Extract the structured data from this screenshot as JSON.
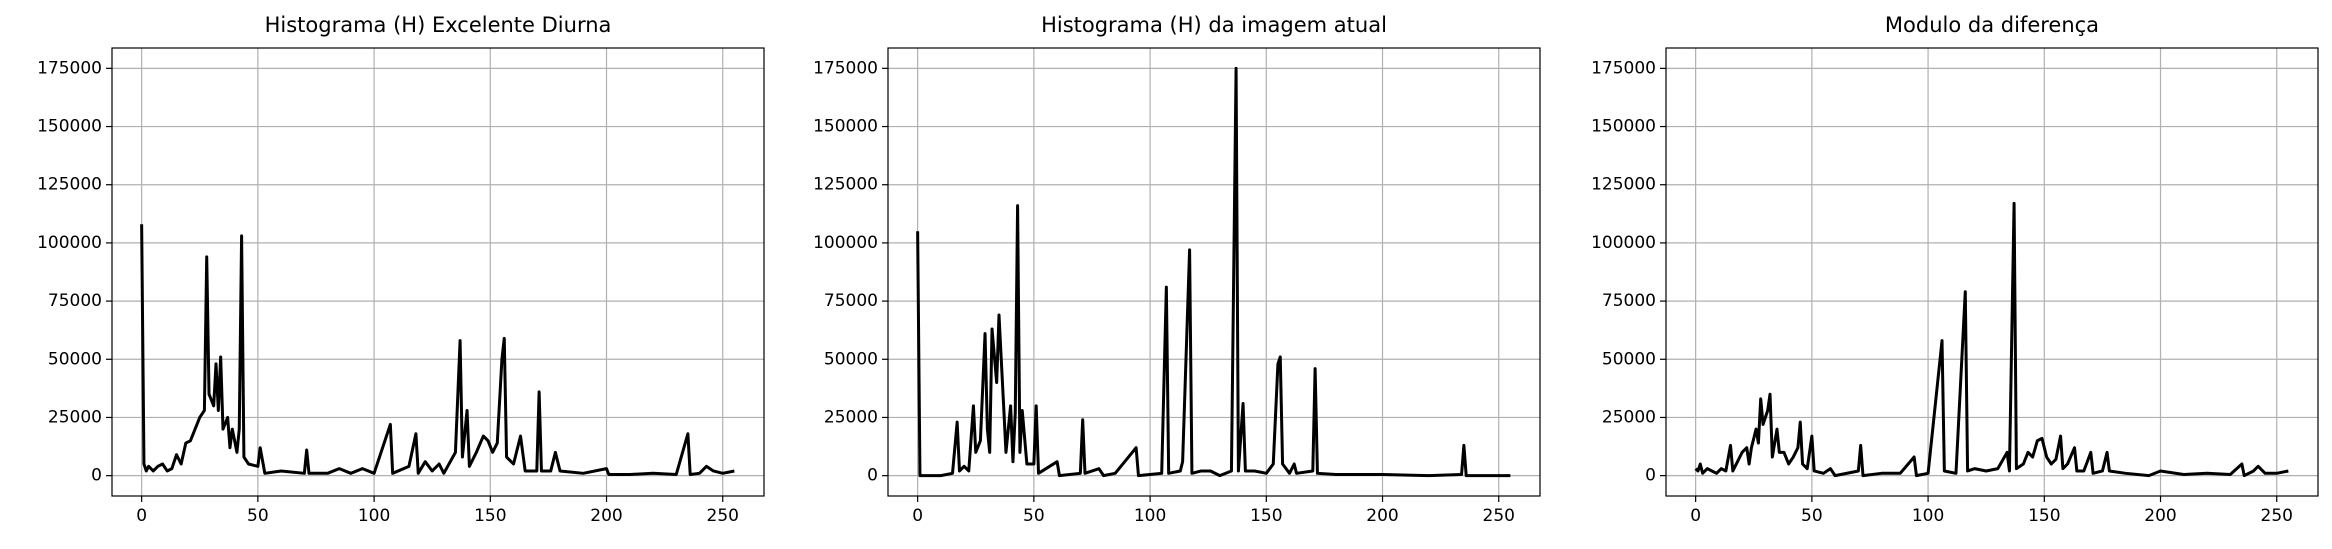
{
  "chart_data": [
    {
      "type": "line",
      "title": "Histograma (H) Excelente Diurna",
      "x": [
        0,
        1,
        2,
        3,
        5,
        7,
        9,
        11,
        13,
        15,
        17,
        19,
        21,
        23,
        25,
        27,
        28,
        29,
        31,
        32,
        33,
        34,
        35,
        37,
        38,
        39,
        41,
        42,
        43,
        44,
        46,
        50,
        51,
        53,
        60,
        70,
        71,
        72,
        80,
        85,
        90,
        95,
        100,
        107,
        108,
        115,
        118,
        119,
        122,
        125,
        128,
        130,
        135,
        137,
        138,
        140,
        141,
        144,
        147,
        149,
        151,
        153,
        155,
        156,
        157,
        160,
        163,
        165,
        170,
        171,
        172,
        176,
        178,
        180,
        190,
        200,
        201,
        210,
        220,
        230,
        235,
        236,
        240,
        243,
        246,
        250,
        255
      ],
      "series": [
        {
          "color": "#000000",
          "values": [
            108000,
            5000,
            2000,
            4000,
            2000,
            4000,
            5000,
            2000,
            3000,
            9000,
            5000,
            14000,
            15000,
            20000,
            25000,
            28000,
            94000,
            35000,
            30000,
            48000,
            28000,
            51000,
            20000,
            25000,
            12000,
            20000,
            10000,
            20000,
            103000,
            8000,
            5000,
            4000,
            12000,
            1000,
            2000,
            1000,
            11000,
            1000,
            1000,
            3000,
            1000,
            3000,
            1000,
            22000,
            1000,
            4000,
            18000,
            1000,
            6000,
            2000,
            5000,
            1000,
            10000,
            58000,
            8000,
            28000,
            4000,
            10000,
            17000,
            15000,
            10000,
            14000,
            50000,
            59000,
            8000,
            5000,
            17000,
            2000,
            2000,
            36000,
            2000,
            2000,
            10000,
            2000,
            1000,
            3000,
            500,
            500,
            1000,
            500,
            18000,
            500,
            1000,
            4000,
            2000,
            1000,
            2000
          ]
        }
      ],
      "xlim": [
        -12.75,
        267.75
      ],
      "ylim": [
        -8750,
        183750
      ],
      "xticks": [
        0,
        50,
        100,
        150,
        200,
        250
      ],
      "yticks": [
        0,
        25000,
        50000,
        75000,
        100000,
        125000,
        150000,
        175000
      ],
      "grid": true
    },
    {
      "type": "line",
      "title": "Histograma (H) da imagem atual",
      "x": [
        0,
        1,
        10,
        15,
        17,
        18,
        20,
        22,
        24,
        25,
        27,
        29,
        30,
        31,
        32,
        34,
        35,
        37,
        38,
        40,
        41,
        42,
        43,
        44,
        45,
        47,
        50,
        51,
        52,
        60,
        61,
        70,
        71,
        72,
        78,
        80,
        85,
        94,
        95,
        105,
        107,
        108,
        113,
        114,
        117,
        118,
        122,
        126,
        130,
        135,
        137,
        138,
        140,
        141,
        145,
        150,
        153,
        155,
        156,
        157,
        160,
        162,
        163,
        170,
        171,
        172,
        180,
        200,
        220,
        234,
        235,
        236,
        255
      ],
      "series": [
        {
          "color": "#000000",
          "values": [
            105000,
            0,
            0,
            1000,
            23000,
            2000,
            4000,
            2000,
            30000,
            10000,
            15000,
            61000,
            20000,
            10000,
            63000,
            40000,
            69000,
            30000,
            10000,
            30000,
            6000,
            27000,
            116000,
            10000,
            28000,
            5000,
            5000,
            30000,
            1000,
            6000,
            0,
            1000,
            24000,
            1000,
            3000,
            0,
            1000,
            12000,
            0,
            1000,
            81000,
            1000,
            2000,
            6000,
            97000,
            1000,
            2000,
            2000,
            0,
            2000,
            175000,
            2000,
            31000,
            2000,
            2000,
            1000,
            5000,
            48000,
            51000,
            5000,
            1000,
            5000,
            1000,
            2000,
            46000,
            1000,
            500,
            500,
            0,
            500,
            13000,
            0,
            0
          ]
        }
      ],
      "xlim": [
        -12.75,
        267.75
      ],
      "ylim": [
        -8750,
        183750
      ],
      "xticks": [
        0,
        50,
        100,
        150,
        200,
        250
      ],
      "yticks": [
        0,
        25000,
        50000,
        75000,
        100000,
        125000,
        150000,
        175000
      ],
      "grid": true
    },
    {
      "type": "line",
      "title": "Modulo da diferença",
      "x": [
        0,
        1,
        2,
        3,
        5,
        7,
        9,
        11,
        13,
        15,
        16,
        18,
        20,
        22,
        23,
        24,
        26,
        27,
        28,
        29,
        31,
        32,
        33,
        35,
        36,
        38,
        40,
        42,
        44,
        45,
        46,
        48,
        50,
        51,
        55,
        58,
        60,
        70,
        71,
        72,
        80,
        88,
        94,
        95,
        100,
        106,
        107,
        112,
        116,
        117,
        120,
        125,
        130,
        134,
        135,
        137,
        138,
        141,
        143,
        145,
        147,
        149,
        151,
        153,
        155,
        157,
        158,
        160,
        163,
        164,
        167,
        170,
        171,
        175,
        177,
        178,
        185,
        195,
        200,
        210,
        220,
        230,
        235,
        236,
        240,
        242,
        245,
        250,
        255
      ],
      "series": [
        {
          "color": "#000000",
          "values": [
            3000,
            2000,
            5000,
            1000,
            3000,
            2000,
            1000,
            3000,
            2000,
            13000,
            2000,
            6000,
            10000,
            12000,
            5000,
            12000,
            20000,
            14000,
            33000,
            22000,
            28000,
            35000,
            8000,
            20000,
            10000,
            10000,
            5000,
            8000,
            12000,
            23000,
            5000,
            3000,
            17000,
            2000,
            1000,
            3000,
            0,
            2000,
            13000,
            0,
            1000,
            1000,
            8000,
            0,
            1000,
            58000,
            2000,
            1000,
            79000,
            2000,
            3000,
            2000,
            3000,
            10000,
            2000,
            117000,
            3000,
            5000,
            10000,
            8000,
            15000,
            16000,
            8000,
            5000,
            7000,
            17000,
            3000,
            5000,
            12000,
            2000,
            2000,
            10000,
            1000,
            2000,
            10000,
            2000,
            1000,
            0,
            2000,
            500,
            1000,
            500,
            5000,
            0,
            2000,
            4000,
            1000,
            1000,
            2000
          ]
        }
      ],
      "xlim": [
        -12.75,
        267.75
      ],
      "ylim": [
        -8750,
        183750
      ],
      "xticks": [
        0,
        50,
        100,
        150,
        200,
        250
      ],
      "yticks": [
        0,
        25000,
        50000,
        75000,
        100000,
        125000,
        150000,
        175000
      ],
      "grid": true
    }
  ]
}
